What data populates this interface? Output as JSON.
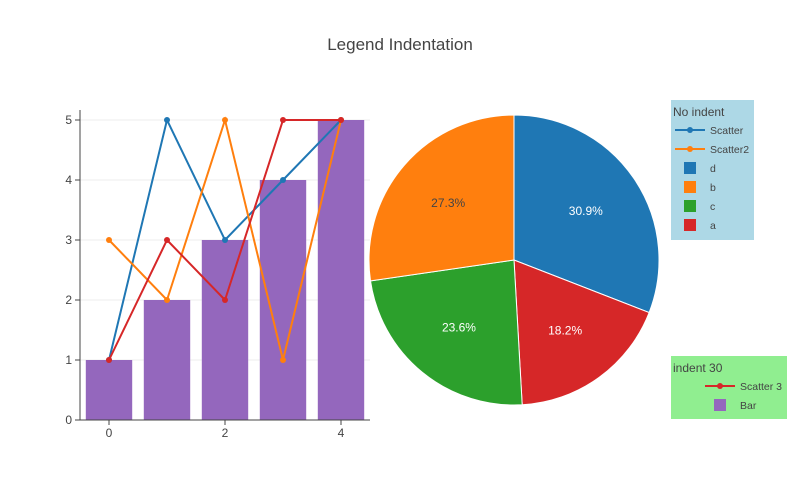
{
  "chart_data": [
    {
      "type": "bar+line",
      "title": "Legend Indentation",
      "xlabel": "",
      "ylabel": "",
      "xlim": [
        -0.5,
        4.5
      ],
      "ylim": [
        0,
        5.5
      ],
      "x_ticks": [
        0,
        2,
        4
      ],
      "y_ticks": [
        0,
        1,
        2,
        3,
        4,
        5
      ],
      "grid": true,
      "bar_series": {
        "name": "Bar",
        "x": [
          0,
          1,
          2,
          3,
          4
        ],
        "values": [
          1,
          2,
          3,
          4,
          5
        ],
        "color": "#9467bd"
      },
      "line_series": [
        {
          "name": "Scatter",
          "x": [
            0,
            1,
            2,
            3,
            4
          ],
          "values": [
            1,
            5,
            3,
            4,
            5
          ],
          "color": "#1f77b4"
        },
        {
          "name": "Scatter2",
          "x": [
            0,
            1,
            2,
            3,
            4
          ],
          "values": [
            3,
            2,
            5,
            1,
            5
          ],
          "color": "#ff7f0e"
        },
        {
          "name": "Scatter 3",
          "x": [
            0,
            1,
            2,
            3,
            4
          ],
          "values": [
            1,
            3,
            2,
            5,
            5
          ],
          "color": "#d62728"
        }
      ]
    },
    {
      "type": "pie",
      "slices": [
        {
          "label": "d",
          "percent": 30.9,
          "text": "30.9%",
          "color": "#1f77b4"
        },
        {
          "label": "a",
          "percent": 18.2,
          "text": "18.2%",
          "color": "#d62728"
        },
        {
          "label": "c",
          "percent": 23.6,
          "text": "23.6%",
          "color": "#2ca02c"
        },
        {
          "label": "b",
          "percent": 27.3,
          "text": "27.3%",
          "color": "#ff7f0e"
        }
      ]
    }
  ],
  "legends": [
    {
      "title": "No indent",
      "bg": "#add8e6",
      "items": [
        {
          "name": "Scatter",
          "kind": "line",
          "color": "#1f77b4"
        },
        {
          "name": "Scatter2",
          "kind": "line",
          "color": "#ff7f0e"
        },
        {
          "name": "d",
          "kind": "box",
          "color": "#1f77b4"
        },
        {
          "name": "b",
          "kind": "box",
          "color": "#ff7f0e"
        },
        {
          "name": "c",
          "kind": "box",
          "color": "#2ca02c"
        },
        {
          "name": "a",
          "kind": "box",
          "color": "#d62728"
        }
      ]
    },
    {
      "title": "indent 30",
      "bg": "#90ee90",
      "items": [
        {
          "name": "Scatter 3",
          "kind": "line",
          "color": "#d62728"
        },
        {
          "name": "Bar",
          "kind": "box",
          "color": "#9467bd"
        }
      ]
    }
  ]
}
